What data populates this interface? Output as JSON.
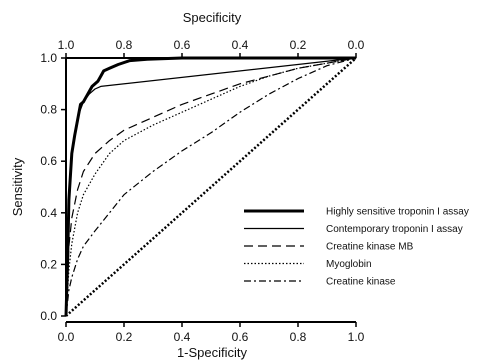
{
  "chart_data": {
    "type": "line",
    "xlabel": "1-Specificity",
    "x2label": "Specificity",
    "ylabel": "Sensitivity",
    "xlim": [
      0,
      1
    ],
    "ylim": [
      0,
      1
    ],
    "grid": false,
    "legend_position": "bottom-right",
    "x_ticks": [
      "0.0",
      "0.2",
      "0.4",
      "0.6",
      "0.8",
      "1.0"
    ],
    "x2_ticks": [
      "1.0",
      "0.8",
      "0.6",
      "0.4",
      "0.2",
      "0.0"
    ],
    "y_ticks": [
      "0.0",
      "0.2",
      "0.4",
      "0.6",
      "0.8",
      "1.0"
    ],
    "series": [
      {
        "name": "Highly sensitive troponin I assay",
        "style": "solid-thick",
        "x": [
          0.0,
          0.005,
          0.01,
          0.02,
          0.03,
          0.04,
          0.05,
          0.06,
          0.07,
          0.09,
          0.11,
          0.12,
          0.13,
          0.15,
          0.18,
          0.22,
          0.28,
          0.4,
          0.6,
          1.0
        ],
        "y": [
          0.0,
          0.2,
          0.45,
          0.63,
          0.7,
          0.76,
          0.82,
          0.83,
          0.85,
          0.89,
          0.91,
          0.93,
          0.95,
          0.96,
          0.975,
          0.99,
          0.995,
          1.0,
          1.0,
          1.0
        ]
      },
      {
        "name": "Contemporary troponin I assay",
        "style": "solid-thin",
        "x": [
          0.0,
          0.01,
          0.02,
          0.04,
          0.06,
          0.08,
          0.1,
          0.12,
          1.0
        ],
        "y": [
          0.0,
          0.45,
          0.64,
          0.77,
          0.83,
          0.86,
          0.88,
          0.89,
          1.0
        ]
      },
      {
        "name": "Creatine kinase MB",
        "style": "dashed",
        "x": [
          0.0,
          0.01,
          0.02,
          0.04,
          0.06,
          0.1,
          0.15,
          0.2,
          0.3,
          0.4,
          0.5,
          0.6,
          0.7,
          0.8,
          0.9,
          1.0
        ],
        "y": [
          0.0,
          0.27,
          0.38,
          0.49,
          0.56,
          0.63,
          0.68,
          0.72,
          0.77,
          0.82,
          0.86,
          0.9,
          0.93,
          0.96,
          0.98,
          1.0
        ]
      },
      {
        "name": "Myoglobin",
        "style": "dotted",
        "x": [
          0.0,
          0.01,
          0.02,
          0.04,
          0.06,
          0.1,
          0.15,
          0.2,
          0.3,
          0.4,
          0.5,
          0.6,
          0.7,
          0.8,
          0.9,
          1.0
        ],
        "y": [
          0.0,
          0.18,
          0.28,
          0.4,
          0.47,
          0.55,
          0.63,
          0.68,
          0.74,
          0.79,
          0.84,
          0.89,
          0.93,
          0.96,
          0.98,
          1.0
        ]
      },
      {
        "name": "Creatine kinase",
        "style": "dashdot",
        "x": [
          0.0,
          0.01,
          0.02,
          0.04,
          0.06,
          0.1,
          0.15,
          0.2,
          0.3,
          0.4,
          0.5,
          0.6,
          0.7,
          0.8,
          0.9,
          1.0
        ],
        "y": [
          0.0,
          0.1,
          0.15,
          0.22,
          0.27,
          0.33,
          0.4,
          0.47,
          0.56,
          0.64,
          0.71,
          0.79,
          0.86,
          0.92,
          0.97,
          1.0
        ]
      },
      {
        "name": "",
        "style": "reference-dotted",
        "x": [
          0.0,
          1.0
        ],
        "y": [
          0.0,
          1.0
        ]
      }
    ]
  }
}
